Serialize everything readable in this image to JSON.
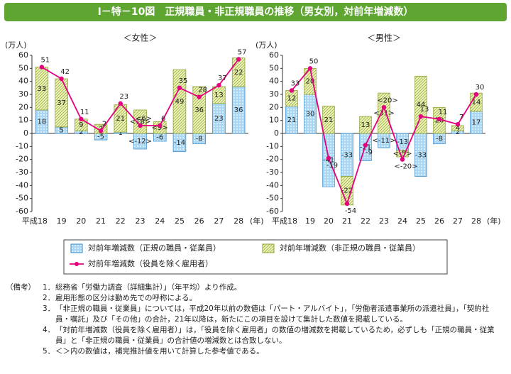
{
  "title": "Ⅰ－特－10図　正規職員・非正規職員の推移（男女別，対前年増減数）",
  "chart_data": [
    {
      "type": "bar",
      "title": "＜女性＞",
      "y_label": "(万人)",
      "x_unit": "(年)",
      "categories": [
        "平成18",
        "19",
        "20",
        "21",
        "22",
        "23",
        "24",
        "25",
        "26",
        "27",
        "28"
      ],
      "ylim": [
        -60,
        60
      ],
      "yticks": [
        -60,
        -50,
        -40,
        -30,
        -20,
        -10,
        0,
        10,
        20,
        30,
        40,
        50,
        60
      ],
      "series": [
        {
          "name": "対前年増減数（正規の職員・従業員）",
          "type": "bar",
          "pattern": "dots",
          "color": "#a9d6f2",
          "edge_color": "#3b8fd0",
          "values": [
            18,
            5,
            2,
            -5,
            1,
            -12,
            -6,
            -14,
            -8,
            23,
            36
          ],
          "value_labels": [
            "18",
            "5",
            "2",
            "-5",
            "1",
            "<-12>",
            "-6",
            "-14",
            "-8",
            "23",
            "36"
          ]
        },
        {
          "name": "対前年増減数（非正規の職員・従業員）",
          "type": "bar",
          "pattern": "hatch",
          "color": "#eef3b8",
          "edge_color": "#8ea334",
          "values": [
            33,
            37,
            9,
            7,
            21,
            18,
            9,
            49,
            36,
            13,
            22
          ],
          "value_labels": [
            "33",
            "37",
            "9",
            "7",
            "21",
            "<18>",
            "<9>",
            "49",
            "36",
            "13",
            "22"
          ]
        },
        {
          "name": "対前年増減数（役員を除く雇用者）",
          "type": "line",
          "color": "#e4007f",
          "values": [
            51,
            42,
            11,
            2,
            23,
            6,
            6,
            35,
            28,
            37,
            57
          ],
          "value_labels": [
            "51",
            "42",
            "11",
            "2",
            "23",
            "<6>",
            "6",
            "35",
            "28",
            "37",
            "57"
          ]
        }
      ]
    },
    {
      "type": "bar",
      "title": "＜男性＞",
      "y_label": "(万人)",
      "x_unit": "(年)",
      "categories": [
        "平成18",
        "19",
        "20",
        "21",
        "22",
        "23",
        "24",
        "25",
        "26",
        "27",
        "28"
      ],
      "ylim": [
        -60,
        60
      ],
      "yticks": [
        -60,
        -50,
        -40,
        -30,
        -20,
        -10,
        0,
        10,
        20,
        30,
        40,
        50,
        60
      ],
      "series": [
        {
          "name": "対前年増減数（正規の職員・従業員）",
          "type": "bar",
          "pattern": "dots",
          "color": "#a9d6f2",
          "edge_color": "#3b8fd0",
          "values": [
            21,
            30,
            -41,
            -33,
            -21,
            -11,
            -13,
            -33,
            -8,
            2,
            17
          ],
          "value_labels": [
            "21",
            "30",
            "-41",
            "-33",
            "-21",
            "<-11>",
            "-13",
            "-33",
            "-8",
            "2",
            "17"
          ]
        },
        {
          "name": "対前年増減数（非正規の職員・従業員）",
          "type": "bar",
          "pattern": "hatch",
          "color": "#eef3b8",
          "edge_color": "#8ea334",
          "values": [
            12,
            20,
            21,
            -22,
            13,
            31,
            -5,
            44,
            20,
            4,
            14
          ],
          "value_labels": [
            "12",
            "20",
            "21",
            "-22",
            "13",
            "<31>",
            "<-5>",
            "44",
            "20",
            "4",
            "14"
          ]
        },
        {
          "name": "対前年増減数（役員を除く雇用者）",
          "type": "line",
          "color": "#e4007f",
          "values": [
            33,
            50,
            -19,
            -54,
            -9,
            20,
            -20,
            13,
            11,
            7,
            30
          ],
          "value_labels": [
            "33",
            "50",
            "-19",
            "-54",
            "-9",
            "<20>",
            "<-20>",
            "13",
            "11",
            "7",
            "30"
          ]
        }
      ]
    }
  ],
  "notes": {
    "label": "（備考）",
    "items": [
      {
        "num": "1．",
        "text": "総務省「労働力調査（詳細集計）」（年平均）より作成。"
      },
      {
        "num": "2．",
        "text": "雇用形態の区分は勤め先での呼称による。"
      },
      {
        "num": "3．",
        "text": "「非正規の職員・従業員」については，平成20年以前の数値は「パート・アルバイト」，「労働者派遣事業所の派遣社員」，「契約社員・嘱託」及び「その他」の合計，21年以降は，新たにこの項目を設けて集計した数値を掲載している。"
      },
      {
        "num": "4．",
        "text": "「対前年増減数（役員を除く雇用者）」は，「役員を除く雇用者」の数値の増減数を掲載しているため，必ずしも「正規の職員・従業員」と「非正規の職員・従業員」の合計値の増減数とは合致しない。"
      },
      {
        "num": "5．",
        "text": "＜＞内の数値は，補完推計値を用いて計算した参考値である。"
      }
    ]
  }
}
